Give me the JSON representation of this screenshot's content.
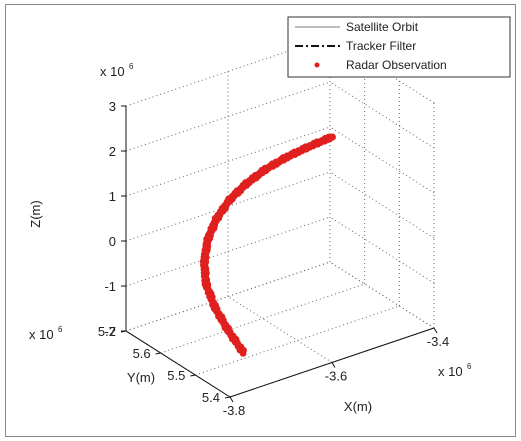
{
  "chart_data": {
    "type": "scatter",
    "projection": "3d",
    "xlabel": "X(m)",
    "ylabel": "Y(m)",
    "zlabel": "Z(m)",
    "x_exponent": "x 10^6",
    "y_exponent": "x 10^6",
    "z_exponent": "x 10^6",
    "xlim": [
      -3.8,
      -3.4
    ],
    "ylim": [
      5.4,
      5.7
    ],
    "zlim": [
      -2,
      3
    ],
    "x_ticks": [
      "-3.8",
      "-3.6",
      "-3.4"
    ],
    "y_ticks": [
      "5.4",
      "5.5",
      "5.6",
      "5.7"
    ],
    "z_ticks": [
      "-2",
      "-1",
      "0",
      "1",
      "2",
      "3"
    ],
    "grid": true,
    "legend_position": "top-right",
    "legend": [
      {
        "label": "Satellite Orbit",
        "style": "solid",
        "color": "#555555"
      },
      {
        "label": "Tracker Filter",
        "style": "dash-dot",
        "color": "#111111"
      },
      {
        "label": "Radar Observation",
        "style": "marker",
        "color": "#e0201e"
      }
    ],
    "series": [
      {
        "name": "Radar Observation",
        "color": "#e0201e",
        "points": [
          {
            "x": -3.72,
            "y": 5.48,
            "z": -1.7
          },
          {
            "x": -3.736,
            "y": 5.5,
            "z": -1.25
          },
          {
            "x": -3.748,
            "y": 5.52,
            "z": -0.8
          },
          {
            "x": -3.752,
            "y": 5.54,
            "z": -0.35
          },
          {
            "x": -3.745,
            "y": 5.555,
            "z": 0.05
          },
          {
            "x": -3.728,
            "y": 5.57,
            "z": 0.4
          },
          {
            "x": -3.703,
            "y": 5.582,
            "z": 0.7
          },
          {
            "x": -3.67,
            "y": 5.592,
            "z": 0.95
          },
          {
            "x": -3.632,
            "y": 5.6,
            "z": 1.12
          },
          {
            "x": -3.59,
            "y": 5.606,
            "z": 1.25
          },
          {
            "x": -3.545,
            "y": 5.61,
            "z": 1.33
          },
          {
            "x": -3.5,
            "y": 5.612,
            "z": 1.38
          },
          {
            "x": -3.455,
            "y": 5.612,
            "z": 1.42
          }
        ]
      }
    ]
  }
}
